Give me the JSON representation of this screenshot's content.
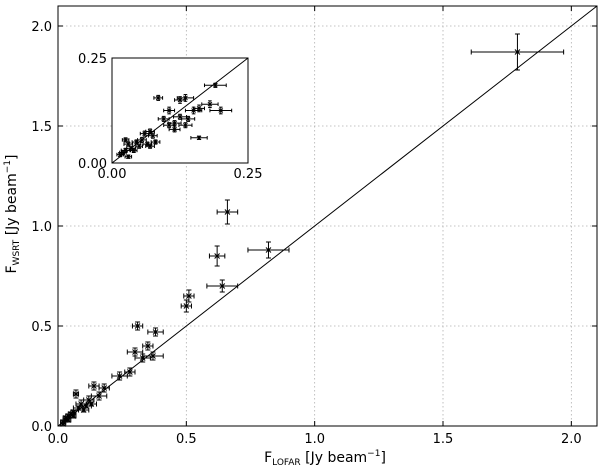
{
  "chart_data": [
    {
      "type": "scatter",
      "title": "",
      "xlabel": "F_LOFAR [Jy beam^-1]",
      "xlabel_main": "F",
      "xlabel_sub": "LOFAR",
      "xlabel_unit": " [Jy beam",
      "xlabel_exp": "−1",
      "xlabel_close": "]",
      "ylabel": "F_WSRT [Jy beam^-1]",
      "ylabel_main": "F",
      "ylabel_sub": "WSRT",
      "ylabel_unit": " [Jy beam",
      "ylabel_exp": "−1",
      "ylabel_close": "]",
      "xlim": [
        0,
        2.1
      ],
      "ylim": [
        0,
        2.1
      ],
      "xticks": [
        "0.0",
        "0.5",
        "1.0",
        "1.5",
        "2.0"
      ],
      "yticks": [
        "0.0",
        "0.5",
        "1.0",
        "1.5",
        "2.0"
      ],
      "grid": true,
      "reference_line": "y = x",
      "marker": "x",
      "points": [
        {
          "x": 1.79,
          "y": 1.87,
          "xerr": 0.18,
          "yerr": 0.09
        },
        {
          "x": 0.82,
          "y": 0.88,
          "xerr": 0.08,
          "yerr": 0.04
        },
        {
          "x": 0.66,
          "y": 1.07,
          "xerr": 0.04,
          "yerr": 0.06
        },
        {
          "x": 0.62,
          "y": 0.85,
          "xerr": 0.03,
          "yerr": 0.05
        },
        {
          "x": 0.64,
          "y": 0.7,
          "xerr": 0.06,
          "yerr": 0.03
        },
        {
          "x": 0.51,
          "y": 0.65,
          "xerr": 0.02,
          "yerr": 0.03
        },
        {
          "x": 0.5,
          "y": 0.6,
          "xerr": 0.02,
          "yerr": 0.03
        },
        {
          "x": 0.38,
          "y": 0.47,
          "xerr": 0.03,
          "yerr": 0.02
        },
        {
          "x": 0.31,
          "y": 0.5,
          "xerr": 0.02,
          "yerr": 0.02
        },
        {
          "x": 0.35,
          "y": 0.4,
          "xerr": 0.02,
          "yerr": 0.02
        },
        {
          "x": 0.3,
          "y": 0.37,
          "xerr": 0.03,
          "yerr": 0.02
        },
        {
          "x": 0.33,
          "y": 0.34,
          "xerr": 0.03,
          "yerr": 0.02
        },
        {
          "x": 0.37,
          "y": 0.35,
          "xerr": 0.04,
          "yerr": 0.02
        },
        {
          "x": 0.28,
          "y": 0.27,
          "xerr": 0.02,
          "yerr": 0.02
        },
        {
          "x": 0.24,
          "y": 0.25,
          "xerr": 0.03,
          "yerr": 0.02
        },
        {
          "x": 0.18,
          "y": 0.19,
          "xerr": 0.02,
          "yerr": 0.02
        },
        {
          "x": 0.14,
          "y": 0.2,
          "xerr": 0.02,
          "yerr": 0.02
        },
        {
          "x": 0.16,
          "y": 0.15,
          "xerr": 0.03,
          "yerr": 0.02
        },
        {
          "x": 0.12,
          "y": 0.13,
          "xerr": 0.02,
          "yerr": 0.02
        },
        {
          "x": 0.09,
          "y": 0.11,
          "xerr": 0.02,
          "yerr": 0.02
        },
        {
          "x": 0.07,
          "y": 0.16,
          "xerr": 0.01,
          "yerr": 0.02
        },
        {
          "x": 0.1,
          "y": 0.08,
          "xerr": 0.02,
          "yerr": 0.01
        },
        {
          "x": 0.08,
          "y": 0.09,
          "xerr": 0.02,
          "yerr": 0.01
        },
        {
          "x": 0.06,
          "y": 0.07,
          "xerr": 0.01,
          "yerr": 0.01
        },
        {
          "x": 0.05,
          "y": 0.06,
          "xerr": 0.01,
          "yerr": 0.01
        },
        {
          "x": 0.04,
          "y": 0.05,
          "xerr": 0.01,
          "yerr": 0.01
        },
        {
          "x": 0.03,
          "y": 0.04,
          "xerr": 0.01,
          "yerr": 0.01
        },
        {
          "x": 0.03,
          "y": 0.03,
          "xerr": 0.01,
          "yerr": 0.01
        },
        {
          "x": 0.02,
          "y": 0.02,
          "xerr": 0.01,
          "yerr": 0.01
        },
        {
          "x": 0.06,
          "y": 0.05,
          "xerr": 0.01,
          "yerr": 0.01
        },
        {
          "x": 0.11,
          "y": 0.1,
          "xerr": 0.02,
          "yerr": 0.01
        },
        {
          "x": 0.13,
          "y": 0.11,
          "xerr": 0.02,
          "yerr": 0.01
        },
        {
          "x": 0.02,
          "y": 0.01,
          "xerr": 0.01,
          "yerr": 0.01
        },
        {
          "x": 0.04,
          "y": 0.03,
          "xerr": 0.01,
          "yerr": 0.01
        }
      ]
    },
    {
      "type": "scatter",
      "title": "",
      "xlim": [
        0,
        0.25
      ],
      "ylim": [
        0,
        0.25
      ],
      "xticks": [
        "0.00",
        "0.25"
      ],
      "yticks": [
        "0.00",
        "0.25"
      ],
      "grid": false,
      "reference_line": "y = x",
      "marker": "x",
      "points": [
        {
          "x": 0.19,
          "y": 0.185,
          "xerr": 0.02,
          "yerr": 0.005
        },
        {
          "x": 0.135,
          "y": 0.155,
          "xerr": 0.015,
          "yerr": 0.008
        },
        {
          "x": 0.125,
          "y": 0.15,
          "xerr": 0.01,
          "yerr": 0.008
        },
        {
          "x": 0.085,
          "y": 0.155,
          "xerr": 0.008,
          "yerr": 0.006
        },
        {
          "x": 0.18,
          "y": 0.14,
          "xerr": 0.015,
          "yerr": 0.008
        },
        {
          "x": 0.15,
          "y": 0.125,
          "xerr": 0.015,
          "yerr": 0.008
        },
        {
          "x": 0.2,
          "y": 0.125,
          "xerr": 0.02,
          "yerr": 0.008
        },
        {
          "x": 0.16,
          "y": 0.13,
          "xerr": 0.01,
          "yerr": 0.008
        },
        {
          "x": 0.105,
          "y": 0.125,
          "xerr": 0.01,
          "yerr": 0.008
        },
        {
          "x": 0.095,
          "y": 0.105,
          "xerr": 0.01,
          "yerr": 0.006
        },
        {
          "x": 0.125,
          "y": 0.11,
          "xerr": 0.012,
          "yerr": 0.006
        },
        {
          "x": 0.14,
          "y": 0.105,
          "xerr": 0.012,
          "yerr": 0.006
        },
        {
          "x": 0.115,
          "y": 0.095,
          "xerr": 0.012,
          "yerr": 0.006
        },
        {
          "x": 0.135,
          "y": 0.09,
          "xerr": 0.012,
          "yerr": 0.006
        },
        {
          "x": 0.16,
          "y": 0.06,
          "xerr": 0.015,
          "yerr": 0.004
        },
        {
          "x": 0.115,
          "y": 0.08,
          "xerr": 0.01,
          "yerr": 0.006
        },
        {
          "x": 0.105,
          "y": 0.09,
          "xerr": 0.01,
          "yerr": 0.006
        },
        {
          "x": 0.07,
          "y": 0.075,
          "xerr": 0.008,
          "yerr": 0.006
        },
        {
          "x": 0.075,
          "y": 0.065,
          "xerr": 0.008,
          "yerr": 0.006
        },
        {
          "x": 0.06,
          "y": 0.07,
          "xerr": 0.008,
          "yerr": 0.006
        },
        {
          "x": 0.055,
          "y": 0.055,
          "xerr": 0.008,
          "yerr": 0.006
        },
        {
          "x": 0.045,
          "y": 0.05,
          "xerr": 0.008,
          "yerr": 0.005
        },
        {
          "x": 0.03,
          "y": 0.045,
          "xerr": 0.008,
          "yerr": 0.005
        },
        {
          "x": 0.035,
          "y": 0.035,
          "xerr": 0.008,
          "yerr": 0.005
        },
        {
          "x": 0.025,
          "y": 0.03,
          "xerr": 0.008,
          "yerr": 0.005
        },
        {
          "x": 0.02,
          "y": 0.025,
          "xerr": 0.006,
          "yerr": 0.005
        },
        {
          "x": 0.015,
          "y": 0.02,
          "xerr": 0.006,
          "yerr": 0.005
        },
        {
          "x": 0.04,
          "y": 0.03,
          "xerr": 0.006,
          "yerr": 0.005
        },
        {
          "x": 0.05,
          "y": 0.04,
          "xerr": 0.006,
          "yerr": 0.005
        },
        {
          "x": 0.065,
          "y": 0.045,
          "xerr": 0.008,
          "yerr": 0.005
        },
        {
          "x": 0.03,
          "y": 0.015,
          "xerr": 0.006,
          "yerr": 0.004
        },
        {
          "x": 0.08,
          "y": 0.05,
          "xerr": 0.008,
          "yerr": 0.005
        },
        {
          "x": 0.07,
          "y": 0.04,
          "xerr": 0.008,
          "yerr": 0.005
        },
        {
          "x": 0.025,
          "y": 0.055,
          "xerr": 0.006,
          "yerr": 0.005
        }
      ]
    }
  ]
}
